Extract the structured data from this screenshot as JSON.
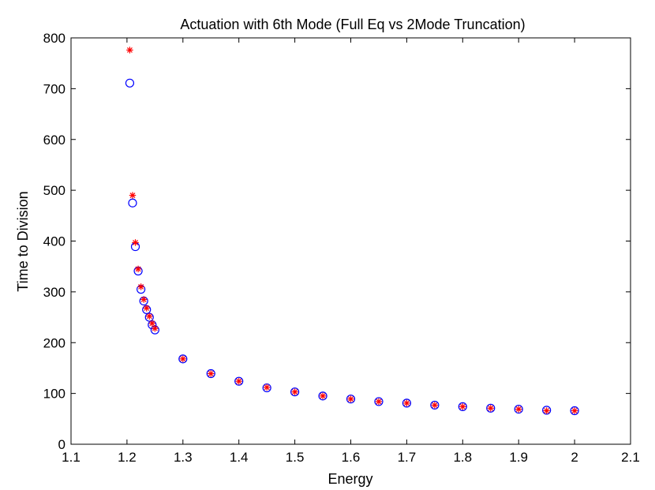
{
  "chart_data": {
    "type": "scatter",
    "title": "Actuation with 6th Mode (Full Eq vs 2Mode Truncation)",
    "xlabel": "Energy",
    "ylabel": "Time to Division",
    "xlim": [
      1.1,
      2.1
    ],
    "ylim": [
      0,
      800
    ],
    "xticks": [
      "1.1",
      "1.2",
      "1.3",
      "1.4",
      "1.5",
      "1.6",
      "1.7",
      "1.8",
      "1.9",
      "2",
      "2.1"
    ],
    "yticks": [
      "0",
      "100",
      "200",
      "300",
      "400",
      "500",
      "600",
      "700",
      "800"
    ],
    "grid": false,
    "series": [
      {
        "marker": "circle",
        "color": "#0000ff",
        "x": [
          1.205,
          1.21,
          1.215,
          1.22,
          1.225,
          1.23,
          1.235,
          1.24,
          1.245,
          1.25,
          1.3,
          1.35,
          1.4,
          1.45,
          1.5,
          1.55,
          1.6,
          1.65,
          1.7,
          1.75,
          1.8,
          1.85,
          1.9,
          1.95,
          2.0
        ],
        "y": [
          711,
          475,
          389,
          341,
          305,
          282,
          265,
          250,
          235,
          225,
          168,
          139,
          124,
          111,
          103,
          95,
          89,
          84,
          81,
          77,
          74,
          71,
          69,
          67,
          66
        ]
      },
      {
        "marker": "asterisk",
        "color": "#ff0000",
        "x": [
          1.205,
          1.21,
          1.215,
          1.22,
          1.225,
          1.23,
          1.235,
          1.24,
          1.245,
          1.25,
          1.3,
          1.35,
          1.4,
          1.45,
          1.5,
          1.55,
          1.6,
          1.65,
          1.7,
          1.75,
          1.8,
          1.85,
          1.9,
          1.95,
          2.0
        ],
        "y": [
          776,
          490,
          397,
          345,
          310,
          285,
          268,
          252,
          238,
          228,
          168,
          139,
          124,
          112,
          103,
          95,
          89,
          84,
          81,
          77,
          74,
          71,
          69,
          66,
          66
        ]
      }
    ]
  }
}
